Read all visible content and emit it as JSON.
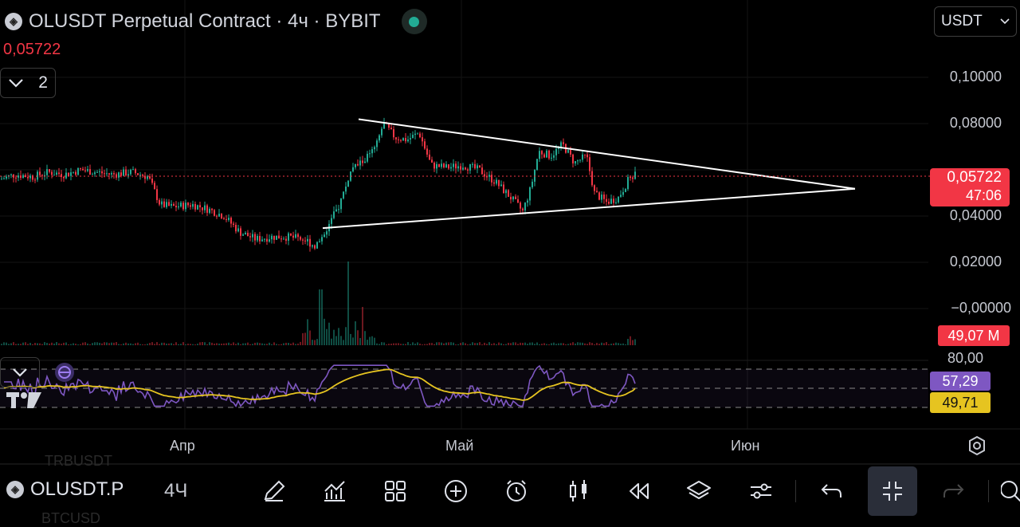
{
  "header": {
    "symbol_icon": "bybit-logo-icon",
    "title": "OLUSDT Perpetual Contract · 4ч · BYBIT",
    "current_price": "0,05722",
    "indicators_count": "2",
    "currency": "USDT"
  },
  "y_axis": {
    "labels": [
      "0,10000",
      "0,08000",
      "0,04000",
      "0,02000",
      "−0,00000"
    ],
    "price_tag": "0,05722",
    "countdown": "47:06",
    "volume_tag": "49,07 M"
  },
  "rsi": {
    "level_label": "80,00",
    "rsi_value": "57,29",
    "ma_value": "49,71"
  },
  "x_axis": {
    "labels": [
      "Апр",
      "Май",
      "Июн"
    ]
  },
  "ghost_symbols": {
    "above": "TRBUSDT",
    "below": "BTCUSD"
  },
  "bottom_bar": {
    "symbol": "OLUSDT.P",
    "interval": "4Ч",
    "tools": [
      "draw-icon",
      "indicators-icon",
      "layout-icon",
      "add-icon",
      "alert-icon",
      "chart-type-icon",
      "replay-icon",
      "layers-icon",
      "settings-icon",
      "undo-icon",
      "fullscreen-exit-icon",
      "redo-icon",
      "search-icon"
    ]
  },
  "colors": {
    "up": "#22ab94",
    "down": "#f23645",
    "rsi": "#7e57c2",
    "rsi_ma": "#e6c420",
    "live": "#22ab94"
  },
  "chart_data": {
    "type": "candlestick",
    "symbol": "OLUSDT",
    "interval": "4ч",
    "y_range": [
      0,
      0.1
    ],
    "last_price": 0.05722,
    "price_path": [
      [
        0,
        0.056
      ],
      [
        18,
        0.058
      ],
      [
        40,
        0.057
      ],
      [
        60,
        0.059
      ],
      [
        80,
        0.058
      ],
      [
        100,
        0.06
      ],
      [
        120,
        0.059
      ],
      [
        140,
        0.058
      ],
      [
        165,
        0.059
      ],
      [
        185,
        0.057
      ],
      [
        200,
        0.045
      ],
      [
        215,
        0.044
      ],
      [
        240,
        0.045
      ],
      [
        260,
        0.043
      ],
      [
        280,
        0.04
      ],
      [
        300,
        0.033
      ],
      [
        320,
        0.03
      ],
      [
        340,
        0.031
      ],
      [
        360,
        0.031
      ],
      [
        380,
        0.03
      ],
      [
        395,
        0.027
      ],
      [
        410,
        0.035
      ],
      [
        425,
        0.045
      ],
      [
        440,
        0.06
      ],
      [
        455,
        0.064
      ],
      [
        470,
        0.069
      ],
      [
        480,
        0.08
      ],
      [
        495,
        0.074
      ],
      [
        510,
        0.073
      ],
      [
        525,
        0.076
      ],
      [
        540,
        0.062
      ],
      [
        560,
        0.061
      ],
      [
        580,
        0.062
      ],
      [
        600,
        0.06
      ],
      [
        620,
        0.055
      ],
      [
        640,
        0.048
      ],
      [
        655,
        0.042
      ],
      [
        665,
        0.052
      ],
      [
        675,
        0.068
      ],
      [
        690,
        0.066
      ],
      [
        705,
        0.071
      ],
      [
        720,
        0.063
      ],
      [
        735,
        0.066
      ],
      [
        745,
        0.05
      ],
      [
        760,
        0.046
      ],
      [
        775,
        0.048
      ],
      [
        790,
        0.057
      ],
      [
        797,
        0.058
      ]
    ],
    "triangle": {
      "upper": [
        [
          450,
          0.0819
        ],
        [
          1073,
          0.0518
        ]
      ],
      "lower": [
        [
          405,
          0.0348
        ],
        [
          1073,
          0.0518
        ]
      ]
    },
    "rsi_levels": [
      80,
      50,
      20
    ],
    "rsi_last": 57.29,
    "rsi_ma_last": 49.71
  }
}
